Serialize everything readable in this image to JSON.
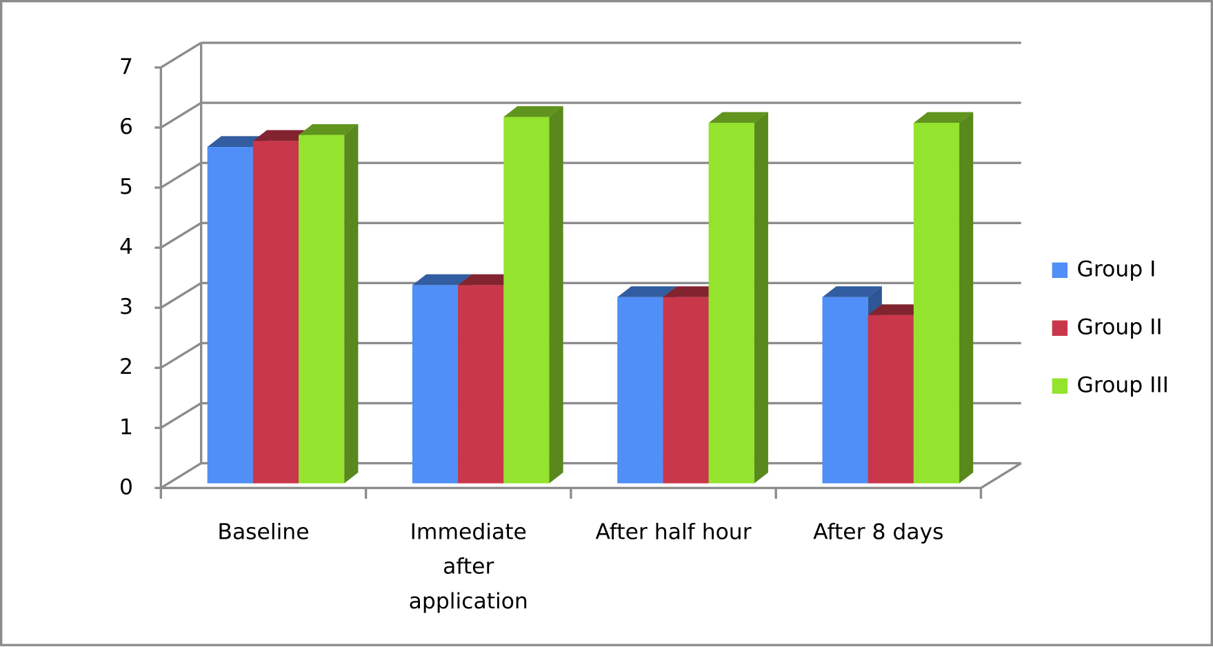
{
  "chart_data": {
    "type": "bar3d",
    "categories": [
      "Baseline",
      "Immediate after application",
      "After half hour",
      "After 8 days"
    ],
    "series": [
      {
        "name": "Group I",
        "color": "#4f8ff7",
        "values": [
          5.6,
          3.3,
          3.1,
          3.1
        ]
      },
      {
        "name": "Group II",
        "color": "#c8374a",
        "values": [
          5.7,
          3.3,
          3.1,
          2.8
        ]
      },
      {
        "name": "Group III",
        "color": "#94e32e",
        "values": [
          5.8,
          6.1,
          6.0,
          6.0
        ]
      }
    ],
    "ylim": [
      0,
      7
    ],
    "yticks": [
      0,
      1,
      2,
      3,
      4,
      5,
      6,
      7
    ],
    "grid": true,
    "legend": "right"
  }
}
